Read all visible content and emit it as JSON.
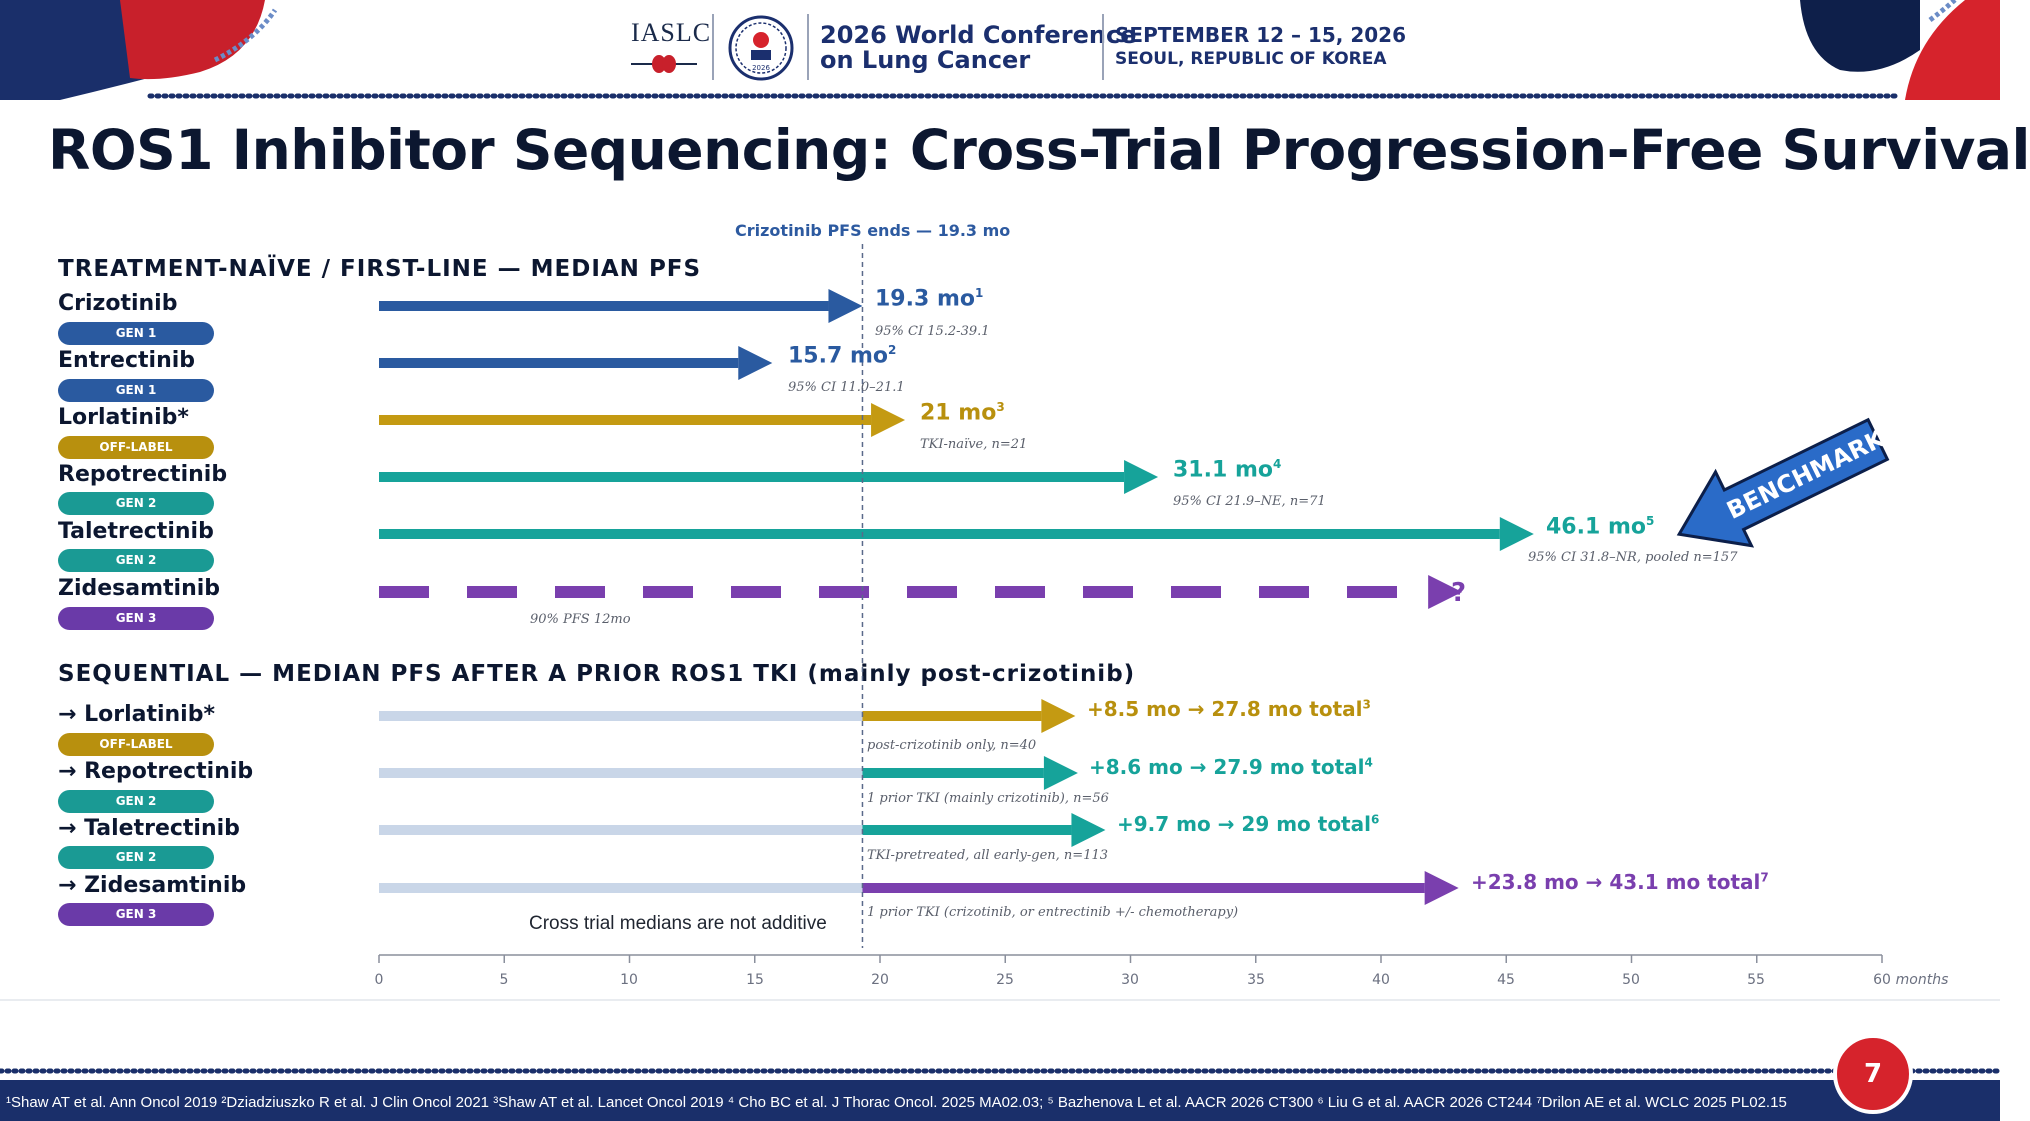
{
  "header": {
    "org_logo": "IASLC",
    "conference_title_line1": "2026 World Conference",
    "conference_title_line2": "on Lung Cancer",
    "dates": "SEPTEMBER 12 – 15, 2026",
    "location": "SEOUL, REPUBLIC OF KOREA",
    "emblem_year": "2026"
  },
  "title": "ROS1 Inhibitor Sequencing: Cross-Trial Progression-Free Survival",
  "crizotinib_marker_label": "Crizotinib PFS ends — 19.3 mo",
  "benchmark_label": "BENCHMARK",
  "first_line": {
    "heading": "TREATMENT-NAÏVE / FIRST-LINE — MEDIAN PFS",
    "rows": [
      {
        "drug": "Crizotinib",
        "badge": "GEN 1",
        "badge_color": "#2a5aa0",
        "bar_color": "#2a5aa0",
        "months": 19.3,
        "value": "19.3 mo",
        "ref": "1",
        "note": "95% CI 15.2-39.1"
      },
      {
        "drug": "Entrectinib",
        "badge": "GEN 1",
        "badge_color": "#2a5aa0",
        "bar_color": "#2a5aa0",
        "months": 15.7,
        "value": "15.7 mo",
        "ref": "2",
        "note": "95% CI 11.0–21.1"
      },
      {
        "drug": "Lorlatinib*",
        "badge": "OFF-LABEL",
        "badge_color": "#b8900e",
        "bar_color": "#c49a12",
        "months": 21,
        "value": "21 mo",
        "ref": "3",
        "note": "TKI-naïve, n=21"
      },
      {
        "drug": "Repotrectinib",
        "badge": "GEN 2",
        "badge_color": "#1a9a94",
        "bar_color": "#16a39a",
        "months": 31.1,
        "value": "31.1 mo",
        "ref": "4",
        "note": "95% CI 21.9–NE, n=71"
      },
      {
        "drug": "Taletrectinib",
        "badge": "GEN 2",
        "badge_color": "#1a9a94",
        "bar_color": "#16a39a",
        "months": 46.1,
        "value": "46.1 mo",
        "ref": "5",
        "note": "95% CI 31.8–NR, pooled n=157"
      },
      {
        "drug": "Zidesamtinib",
        "badge": "GEN 3",
        "badge_color": "#6a3aa8",
        "bar_color": "#7a3fae",
        "months": 43,
        "value": "?",
        "ref": "",
        "note": "90% PFS 12mo",
        "dashed": true
      }
    ]
  },
  "sequential": {
    "heading": "SEQUENTIAL — MEDIAN PFS AFTER A PRIOR ROS1 TKI (mainly post-crizotinib)",
    "rows": [
      {
        "drug": "→ Lorlatinib*",
        "badge": "OFF-LABEL",
        "badge_color": "#b8900e",
        "bar_color": "#c49a12",
        "months_total": 27.8,
        "value": "+8.5 mo → 27.8 mo total",
        "ref": "3",
        "note": "post-crizotinib only, n=40"
      },
      {
        "drug": "→ Repotrectinib",
        "badge": "GEN 2",
        "badge_color": "#1a9a94",
        "bar_color": "#16a39a",
        "months_total": 27.9,
        "value": "+8.6 mo → 27.9 mo total",
        "ref": "4",
        "note": "1 prior TKI (mainly crizotinib), n=56"
      },
      {
        "drug": "→ Taletrectinib",
        "badge": "GEN 2",
        "badge_color": "#1a9a94",
        "bar_color": "#16a39a",
        "months_total": 29,
        "value": "+9.7 mo → 29 mo total",
        "ref": "6",
        "note": "TKI-pretreated, all early-gen, n=113"
      },
      {
        "drug": "→ Zidesamtinib",
        "badge": "GEN 3",
        "badge_color": "#6a3aa8",
        "bar_color": "#7a3fae",
        "months_total": 43.1,
        "value": "+23.8 mo → 43.1 mo total",
        "ref": "7",
        "note": "1 prior TKI (crizotinib, or entrectinib +/- chemotherapy)"
      }
    ]
  },
  "disclaimer": "Cross trial medians are not additive",
  "axis": {
    "ticks": [
      "0",
      "5",
      "10",
      "15",
      "20",
      "25",
      "30",
      "35",
      "40",
      "45",
      "50",
      "55",
      "60"
    ],
    "unit": "months"
  },
  "footer": {
    "references": "¹Shaw AT et al. Ann Oncol 2019 ²Dziadziuszko R et al. J Clin Oncol 2021 ³Shaw AT et al. Lancet Oncol 2019 ⁴ Cho BC et al. J Thorac Oncol. 2025 MA02.03; ⁵ Bazhenova L et al. AACR 2026 CT300 ⁶ Liu G et al. AACR 2026 CT244 ⁷Drilon AE et al. WCLC 2025 PL02.15",
    "page_number": "7"
  },
  "colors": {
    "navy": "#1a2f6a",
    "red": "#d6232c",
    "blue": "#2a5aa0",
    "gold": "#c49a12",
    "teal": "#16a39a",
    "purple": "#7a3fae",
    "prior_bar": "#c9d6e8"
  }
}
